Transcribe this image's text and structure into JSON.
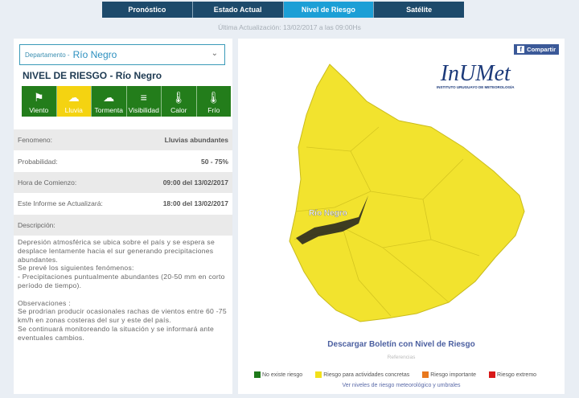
{
  "nav": {
    "tabs": [
      "Pronóstico",
      "Estado Actual",
      "Nivel de Riesgo",
      "Satélite"
    ],
    "active": 2
  },
  "updated": "Última Actualización: 13/02/2017 a las 09:00Hs",
  "selector": {
    "label": "Departamento -",
    "value": "Río Negro"
  },
  "title": "NIVEL DE RIESGO - Río Negro",
  "phenomena": [
    {
      "label": "Viento",
      "icon": "windsock-icon",
      "active": false
    },
    {
      "label": "Lluvia",
      "icon": "rain-cloud-icon",
      "active": true
    },
    {
      "label": "Tormenta",
      "icon": "storm-cloud-icon",
      "active": false
    },
    {
      "label": "Visibilidad",
      "icon": "fog-lines-icon",
      "active": false
    },
    {
      "label": "Calor",
      "icon": "thermometer-hot-icon",
      "active": false
    },
    {
      "label": "Frío",
      "icon": "thermometer-cold-icon",
      "active": false
    }
  ],
  "details": [
    {
      "label": "Fenomeno:",
      "value": "Lluvias abundantes"
    },
    {
      "label": "Probabilidad:",
      "value": "50 - 75%"
    },
    {
      "label": "Hora de Comienzo:",
      "value": "09:00 del 13/02/2017"
    },
    {
      "label": "Este Informe se Actualizará:",
      "value": "18:00 del 13/02/2017"
    },
    {
      "label": "Descripción:",
      "value": ""
    }
  ],
  "description": "Depresión atmosférica se ubica sobre el país y se espera se desplace lentamente hacia el sur generando precipitaciones abundantes.\nSe prevé los siguientes fenómenos:\n- Precipitaciones puntualmente abundantes (20-50 mm en corto período de tiempo).\n\nObservaciones :\nSe prodrian producir ocasionales rachas de vientos entre 60 -75 km/h en zonas costeras del sur y este del país.\nSe continuará monitoreando la situación y se informará ante eventuales cambios.",
  "share": "Compartir",
  "logo": {
    "name": "InUMet",
    "subtitle": "INSTITUTO URUGUAYO DE METEOROLOGÍA"
  },
  "map": {
    "highlight_label": "Río Negro",
    "fill": "#f2e32e"
  },
  "download": "Descargar Boletín con Nivel de Riesgo",
  "references": "Referencias",
  "legend": [
    {
      "label": "No existe riesgo",
      "color": "#1e7a1a"
    },
    {
      "label": "Riesgo para actividades concretas",
      "color": "#f2e01a"
    },
    {
      "label": "Riesgo importante",
      "color": "#e8781e"
    },
    {
      "label": "Riesgo extremo",
      "color": "#d81818"
    }
  ],
  "levels_link": "Ver niveles de riesgo meteorológico y umbrales"
}
